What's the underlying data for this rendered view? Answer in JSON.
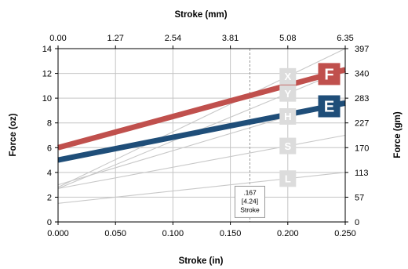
{
  "chart_data": {
    "type": "line",
    "title": "",
    "xlabel": "Stroke (in)",
    "xlabel_top": "Stroke (mm)",
    "ylabel": "Force (oz)",
    "ylabel_right": "Force (gm)",
    "xlim": [
      0,
      0.25
    ],
    "ylim": [
      0,
      14
    ],
    "x_ticks": [
      "0.000",
      "0.050",
      "0.100",
      "0.150",
      "0.200",
      "0.250"
    ],
    "x_top_ticks": [
      "0.00",
      "1.27",
      "2.54",
      "3.81",
      "5.08",
      "6.35"
    ],
    "y_ticks": [
      "0",
      "2",
      "4",
      "6",
      "8",
      "10",
      "12",
      "14"
    ],
    "y_right_ticks": [
      "0",
      "57",
      "113",
      "170",
      "227",
      "283",
      "340",
      "397"
    ],
    "grid": true,
    "series": [
      {
        "name": "F",
        "color": "#c0504d",
        "highlight": true,
        "x": [
          0,
          0.25
        ],
        "y": [
          6.0,
          12.3
        ]
      },
      {
        "name": "E",
        "color": "#1f4e79",
        "highlight": true,
        "x": [
          0,
          0.25
        ],
        "y": [
          5.0,
          9.6
        ]
      },
      {
        "name": "X",
        "color": "#c8c8c8",
        "highlight": false,
        "x": [
          0,
          0.25
        ],
        "y": [
          2.8,
          14.0
        ]
      },
      {
        "name": "Y",
        "color": "#c8c8c8",
        "highlight": false,
        "x": [
          0,
          0.25
        ],
        "y": [
          2.7,
          12.3
        ]
      },
      {
        "name": "H",
        "color": "#c8c8c8",
        "highlight": false,
        "x": [
          0,
          0.25
        ],
        "y": [
          3.0,
          9.9
        ]
      },
      {
        "name": "S",
        "color": "#c8c8c8",
        "highlight": false,
        "x": [
          0,
          0.25
        ],
        "y": [
          2.7,
          7.0
        ]
      },
      {
        "name": "L",
        "color": "#c8c8c8",
        "highlight": false,
        "x": [
          0,
          0.25
        ],
        "y": [
          1.5,
          4.0
        ]
      }
    ],
    "reference_line": {
      "x": 0.167,
      "style": "dashed"
    },
    "annotation": {
      "lines": [
        ".167",
        "[4.24]",
        "Stroke"
      ],
      "x": 0.167,
      "y": 2.0
    }
  }
}
